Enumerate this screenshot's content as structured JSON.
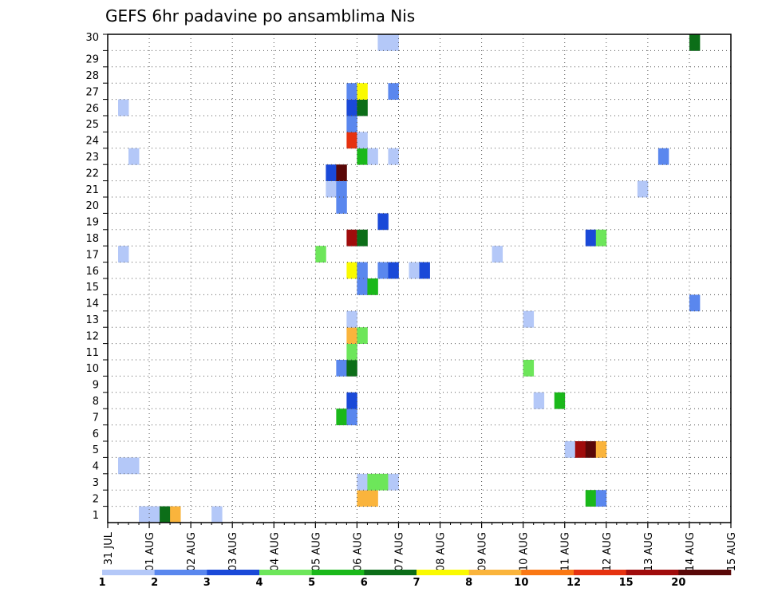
{
  "chart_data": {
    "type": "heatmap",
    "title": "GEFS 6hr padavine po ansamblima Nis",
    "xlabel": "",
    "ylabel": "",
    "x_labels": [
      "31 JUL",
      "01 AUG",
      "02 AUG",
      "03 AUG",
      "04 AUG",
      "05 AUG",
      "06 AUG",
      "07 AUG",
      "08 AUG",
      "09 AUG",
      "10 AUG",
      "11 AUG",
      "12 AUG",
      "13 AUG",
      "14 AUG",
      "15 AUG"
    ],
    "xlim": [
      0,
      15
    ],
    "y_labels": [
      "1",
      "2",
      "3",
      "4",
      "5",
      "6",
      "7",
      "8",
      "9",
      "10",
      "11",
      "12",
      "13",
      "14",
      "15",
      "16",
      "17",
      "18",
      "19",
      "20",
      "21",
      "22",
      "23",
      "24",
      "25",
      "26",
      "27",
      "28",
      "29",
      "30"
    ],
    "ylim": [
      0,
      30
    ],
    "grid": true,
    "colorbar": {
      "labels": [
        "1",
        "2",
        "3",
        "4",
        "5",
        "6",
        "7",
        "8",
        "10",
        "12",
        "15",
        "20"
      ],
      "colors": [
        "#b4c8f8",
        "#5a87ee",
        "#1a49d8",
        "#6de65a",
        "#1ab81a",
        "#0c6e18",
        "#fafa00",
        "#fab43c",
        "#fa7814",
        "#e63210",
        "#a00c0c",
        "#5a0808"
      ]
    },
    "cells": [
      {
        "x": 0.75,
        "y": 0,
        "c": 1
      },
      {
        "x": 1.0,
        "y": 0,
        "c": 1
      },
      {
        "x": 1.25,
        "y": 0,
        "c": 6
      },
      {
        "x": 1.5,
        "y": 0,
        "c": 8
      },
      {
        "x": 2.5,
        "y": 0,
        "c": 1
      },
      {
        "x": 6.0,
        "y": 1,
        "c": 8
      },
      {
        "x": 6.25,
        "y": 1,
        "c": 8
      },
      {
        "x": 11.5,
        "y": 1,
        "c": 5
      },
      {
        "x": 11.75,
        "y": 1,
        "c": 2
      },
      {
        "x": 6.0,
        "y": 2,
        "c": 1
      },
      {
        "x": 6.25,
        "y": 2,
        "c": 4
      },
      {
        "x": 6.5,
        "y": 2,
        "c": 4
      },
      {
        "x": 6.75,
        "y": 2,
        "c": 1
      },
      {
        "x": 0.25,
        "y": 3,
        "c": 1
      },
      {
        "x": 0.5,
        "y": 3,
        "c": 1
      },
      {
        "x": 11.0,
        "y": 4,
        "c": 1
      },
      {
        "x": 11.25,
        "y": 4,
        "c": 11
      },
      {
        "x": 11.5,
        "y": 4,
        "c": 12
      },
      {
        "x": 11.75,
        "y": 4,
        "c": 8
      },
      {
        "x": 5.5,
        "y": 6,
        "c": 5
      },
      {
        "x": 5.75,
        "y": 6,
        "c": 2
      },
      {
        "x": 5.75,
        "y": 7,
        "c": 3
      },
      {
        "x": 10.25,
        "y": 7,
        "c": 1
      },
      {
        "x": 10.75,
        "y": 7,
        "c": 5
      },
      {
        "x": 5.5,
        "y": 9,
        "c": 2
      },
      {
        "x": 5.75,
        "y": 9,
        "c": 6
      },
      {
        "x": 10.0,
        "y": 9,
        "c": 4
      },
      {
        "x": 5.75,
        "y": 10,
        "c": 4
      },
      {
        "x": 5.75,
        "y": 11,
        "c": 8
      },
      {
        "x": 6.0,
        "y": 11,
        "c": 4
      },
      {
        "x": 5.75,
        "y": 12,
        "c": 1
      },
      {
        "x": 10.0,
        "y": 12,
        "c": 1
      },
      {
        "x": 14.0,
        "y": 13,
        "c": 2
      },
      {
        "x": 6.0,
        "y": 14,
        "c": 2
      },
      {
        "x": 6.25,
        "y": 14,
        "c": 5
      },
      {
        "x": 5.75,
        "y": 15,
        "c": 7
      },
      {
        "x": 6.0,
        "y": 15,
        "c": 2
      },
      {
        "x": 6.5,
        "y": 15,
        "c": 2
      },
      {
        "x": 6.75,
        "y": 15,
        "c": 3
      },
      {
        "x": 7.25,
        "y": 15,
        "c": 1
      },
      {
        "x": 7.5,
        "y": 15,
        "c": 3
      },
      {
        "x": 0.25,
        "y": 16,
        "c": 1
      },
      {
        "x": 5.0,
        "y": 16,
        "c": 4
      },
      {
        "x": 9.25,
        "y": 16,
        "c": 1
      },
      {
        "x": 5.75,
        "y": 17,
        "c": 11
      },
      {
        "x": 6.0,
        "y": 17,
        "c": 6
      },
      {
        "x": 11.5,
        "y": 17,
        "c": 3
      },
      {
        "x": 11.75,
        "y": 17,
        "c": 4
      },
      {
        "x": 6.5,
        "y": 18,
        "c": 3
      },
      {
        "x": 5.5,
        "y": 19,
        "c": 2
      },
      {
        "x": 5.25,
        "y": 20,
        "c": 1
      },
      {
        "x": 5.5,
        "y": 20,
        "c": 2
      },
      {
        "x": 12.75,
        "y": 20,
        "c": 1
      },
      {
        "x": 5.25,
        "y": 21,
        "c": 3
      },
      {
        "x": 5.5,
        "y": 21,
        "c": 12
      },
      {
        "x": 0.5,
        "y": 22,
        "c": 1
      },
      {
        "x": 6.0,
        "y": 22,
        "c": 5
      },
      {
        "x": 6.25,
        "y": 22,
        "c": 1
      },
      {
        "x": 6.75,
        "y": 22,
        "c": 1
      },
      {
        "x": 13.25,
        "y": 22,
        "c": 2
      },
      {
        "x": 5.75,
        "y": 23,
        "c": 10
      },
      {
        "x": 6.0,
        "y": 23,
        "c": 1
      },
      {
        "x": 5.75,
        "y": 24,
        "c": 2
      },
      {
        "x": 0.25,
        "y": 25,
        "c": 1
      },
      {
        "x": 5.75,
        "y": 25,
        "c": 3
      },
      {
        "x": 6.0,
        "y": 25,
        "c": 6
      },
      {
        "x": 5.75,
        "y": 26,
        "c": 2
      },
      {
        "x": 6.0,
        "y": 26,
        "c": 7
      },
      {
        "x": 6.75,
        "y": 26,
        "c": 2
      },
      {
        "x": 6.5,
        "y": 29,
        "c": 1
      },
      {
        "x": 6.75,
        "y": 29,
        "c": 1
      },
      {
        "x": 14.0,
        "y": 29,
        "c": 6
      }
    ]
  }
}
